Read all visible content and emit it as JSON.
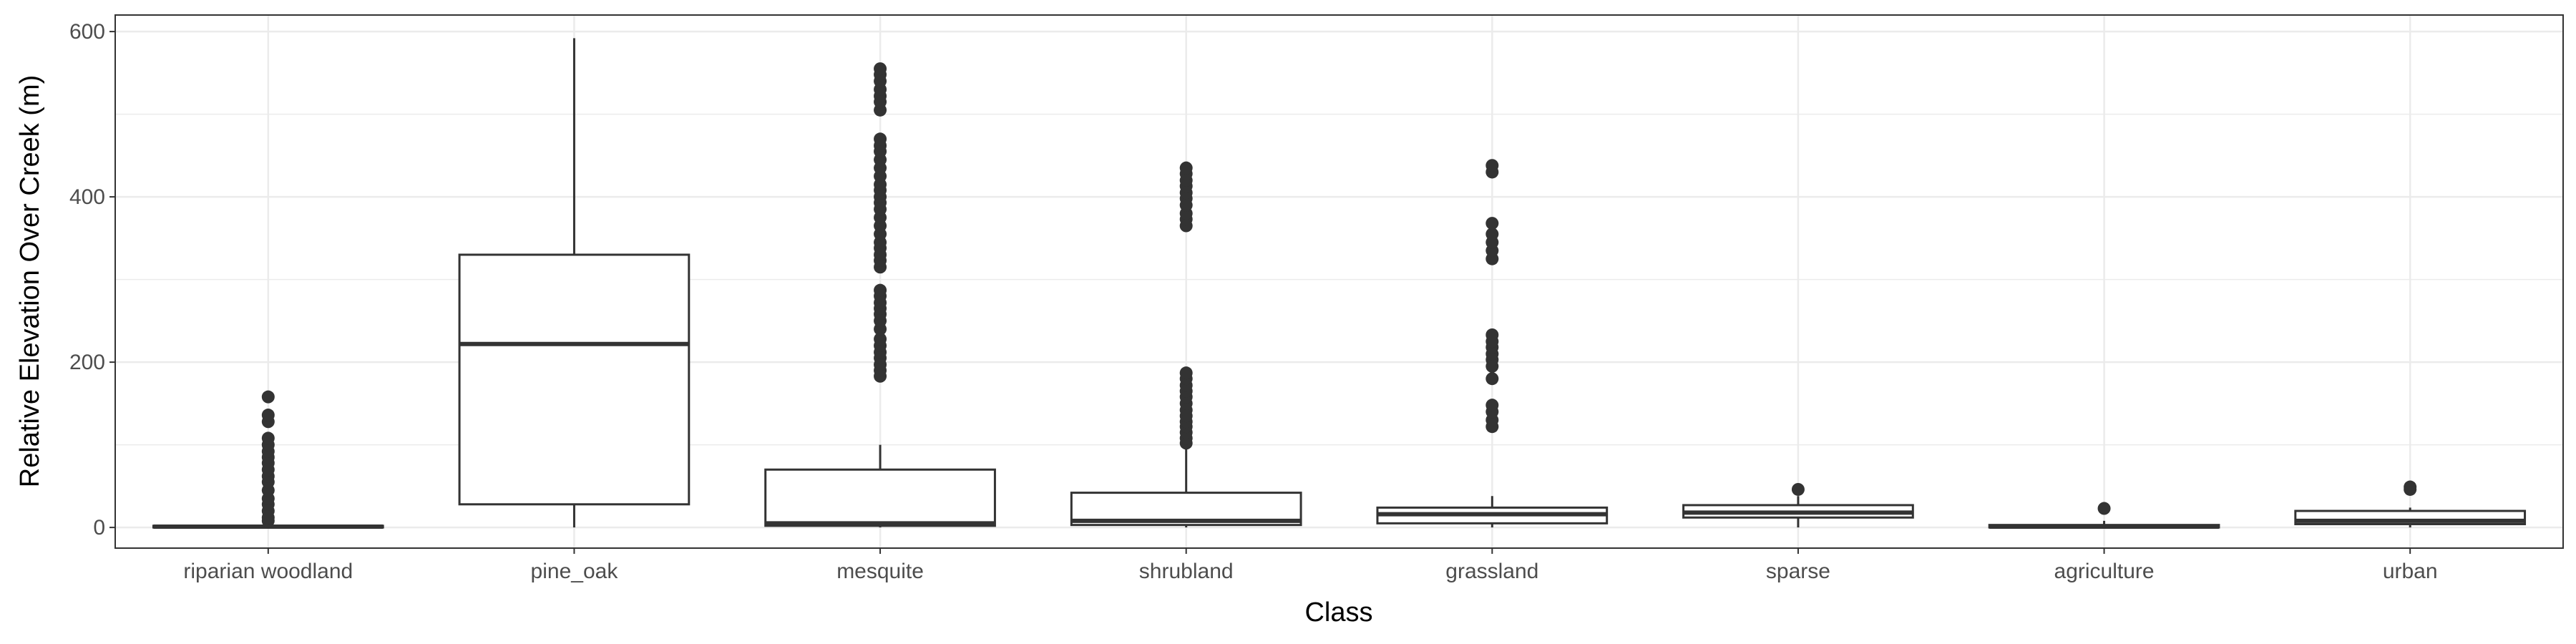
{
  "chart_data": {
    "type": "boxplot",
    "title": "",
    "xlabel": "Class",
    "ylabel": "Relative Elevation Over Creek (m)",
    "ylim": [
      -25,
      620
    ],
    "yticks": [
      0,
      200,
      400,
      600
    ],
    "grid": true,
    "colors": {
      "box_line": "#333333",
      "box_fill": "#ffffff",
      "grid": "#ebebeb",
      "panel_border": "#333333"
    },
    "categories": [
      "riparian woodland",
      "pine_oak",
      "mesquite",
      "shrubland",
      "grassland",
      "sparse",
      "agriculture",
      "urban"
    ],
    "boxes": [
      {
        "category": "riparian woodland",
        "q1": 0,
        "median": 1,
        "q3": 2,
        "whisker_low": 0,
        "whisker_high": 4,
        "outliers": [
          8,
          12,
          20,
          28,
          35,
          45,
          55,
          62,
          70,
          78,
          85,
          92,
          100,
          108,
          128,
          136,
          158
        ]
      },
      {
        "category": "pine_oak",
        "q1": 28,
        "median": 222,
        "q3": 330,
        "whisker_low": 0,
        "whisker_high": 592,
        "outliers": []
      },
      {
        "category": "mesquite",
        "q1": 2,
        "median": 5,
        "q3": 70,
        "whisker_low": 0,
        "whisker_high": 100,
        "outliers": [
          183,
          190,
          197,
          205,
          212,
          220,
          228,
          240,
          250,
          258,
          265,
          272,
          280,
          287,
          315,
          323,
          330,
          338,
          345,
          355,
          365,
          375,
          385,
          393,
          400,
          408,
          415,
          425,
          435,
          445,
          455,
          462,
          470,
          505,
          515,
          522,
          530,
          540,
          548,
          555
        ]
      },
      {
        "category": "shrubland",
        "q1": 3,
        "median": 8,
        "q3": 42,
        "whisker_low": 0,
        "whisker_high": 95,
        "outliers": [
          102,
          108,
          115,
          122,
          128,
          135,
          142,
          150,
          158,
          165,
          172,
          180,
          187,
          365,
          373,
          380,
          390,
          398,
          405,
          413,
          420,
          428,
          435
        ]
      },
      {
        "category": "grassland",
        "q1": 5,
        "median": 16,
        "q3": 24,
        "whisker_low": 0,
        "whisker_high": 38,
        "outliers": [
          122,
          130,
          140,
          148,
          180,
          195,
          203,
          210,
          218,
          225,
          233,
          325,
          335,
          345,
          355,
          368,
          430,
          438
        ]
      },
      {
        "category": "sparse",
        "q1": 12,
        "median": 18,
        "q3": 27,
        "whisker_low": 0,
        "whisker_high": 38,
        "outliers": [
          46
        ]
      },
      {
        "category": "agriculture",
        "q1": 0,
        "median": 1,
        "q3": 3,
        "whisker_low": 0,
        "whisker_high": 8,
        "outliers": [
          23
        ]
      },
      {
        "category": "urban",
        "q1": 4,
        "median": 8,
        "q3": 20,
        "whisker_low": 0,
        "whisker_high": 24,
        "outliers": [
          46,
          49
        ]
      }
    ]
  }
}
